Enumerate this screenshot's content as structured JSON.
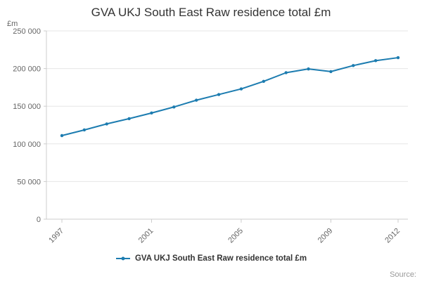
{
  "chart_data": {
    "type": "line",
    "title": "GVA UKJ South East Raw residence total £m",
    "ylabel": "£m",
    "xlabel": "",
    "x": [
      1997,
      1998,
      1999,
      2000,
      2001,
      2002,
      2003,
      2004,
      2005,
      2006,
      2007,
      2008,
      2009,
      2010,
      2011,
      2012
    ],
    "values": [
      111000,
      118500,
      126500,
      133500,
      141000,
      149000,
      158000,
      165500,
      173000,
      183000,
      194500,
      199500,
      196000,
      204000,
      210500,
      214500
    ],
    "ylim": [
      0,
      250000
    ],
    "yticks": [
      0,
      50000,
      100000,
      150000,
      200000,
      250000
    ],
    "xticks": [
      1997,
      2001,
      2005,
      2009,
      2012
    ],
    "color": "#1c7cb0",
    "grid": true,
    "legend_position": "bottom"
  },
  "legend": {
    "label": "GVA UKJ South East Raw residence total £m"
  },
  "footer": {
    "source": "Source:"
  }
}
